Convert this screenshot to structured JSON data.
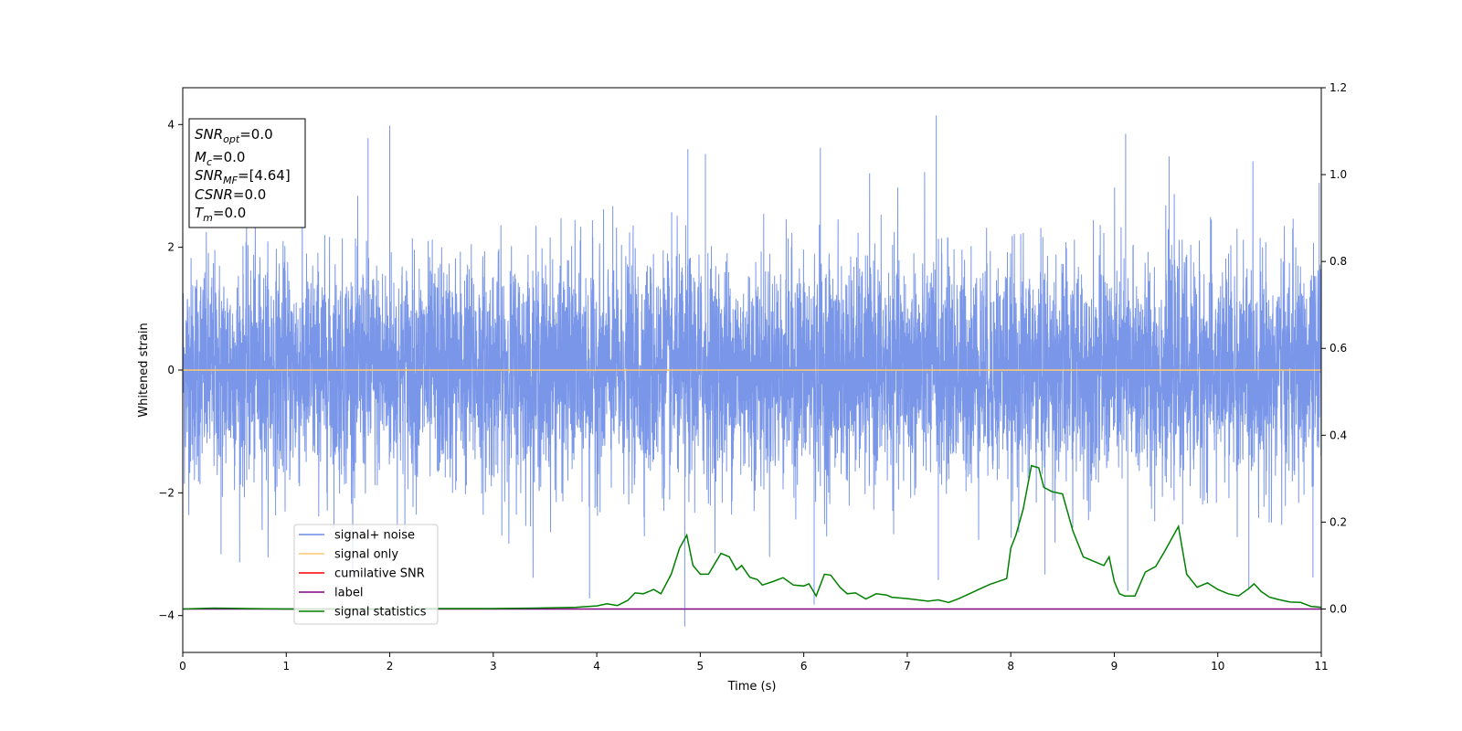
{
  "chart_data": {
    "type": "line",
    "xlabel": "Time (s)",
    "ylabel": "Whitened strain",
    "xlim": [
      0,
      11
    ],
    "ylim": [
      -4.6,
      4.6
    ],
    "y2lim": [
      -0.1,
      1.2
    ],
    "x_ticks": [
      0,
      1,
      2,
      3,
      4,
      5,
      6,
      7,
      8,
      9,
      10,
      11
    ],
    "y_ticks": [
      -4,
      -2,
      0,
      2,
      4
    ],
    "y2_ticks": [
      "0.0",
      "0.2",
      "0.4",
      "0.6",
      "0.8",
      "1.0",
      "1.2"
    ],
    "grid": false,
    "legend_position": "lower-left",
    "legend": [
      {
        "name": "signal+ noise",
        "color": "#6a8be6"
      },
      {
        "name": "signal only",
        "color": "#ffc870"
      },
      {
        "name": "cumilative SNR",
        "color": "#ff0000"
      },
      {
        "name": "label",
        "color": "#800080"
      },
      {
        "name": "signal statistics",
        "color": "#008000"
      }
    ],
    "info_box": [
      {
        "sym": "SNR",
        "sub": "opt",
        "rest": "=0.0"
      },
      {
        "sym": "M",
        "sub": "c",
        "rest": "=0.0"
      },
      {
        "sym": "SNR",
        "sub": "MF",
        "rest": "=[4.64]"
      },
      {
        "sym": "CSNR",
        "sub": "",
        "rest": "=0.0"
      },
      {
        "sym": "T",
        "sub": "m",
        "rest": "=0.0"
      }
    ],
    "series": [
      {
        "name": "signal+ noise",
        "axis": "left",
        "color": "#6a8be6",
        "description_envelope": "gaussian noise band, typically within ±2.2 with spikes",
        "spikes": [
          {
            "x": 1.79,
            "y": 3.78
          },
          {
            "x": 2.0,
            "y": 3.98
          },
          {
            "x": 4.88,
            "y": 3.6
          },
          {
            "x": 5.05,
            "y": 3.52
          },
          {
            "x": 6.16,
            "y": 3.62
          },
          {
            "x": 7.28,
            "y": 4.15
          },
          {
            "x": 9.11,
            "y": 3.85
          },
          {
            "x": 9.53,
            "y": 3.48
          },
          {
            "x": 10.98,
            "y": 3.05
          },
          {
            "x": 0.37,
            "y": -3.0
          },
          {
            "x": 3.93,
            "y": -3.72
          },
          {
            "x": 4.85,
            "y": -4.18
          },
          {
            "x": 6.1,
            "y": -3.82
          },
          {
            "x": 7.3,
            "y": -3.42
          },
          {
            "x": 8.33,
            "y": -3.33
          },
          {
            "x": 9.13,
            "y": -3.6
          },
          {
            "x": 10.3,
            "y": -3.58
          },
          {
            "x": 10.92,
            "y": -3.38
          }
        ]
      },
      {
        "name": "signal only",
        "axis": "left",
        "color": "#ffc870",
        "x": [
          0,
          11
        ],
        "y": [
          0,
          0
        ]
      },
      {
        "name": "label",
        "axis": "right",
        "color": "#800080",
        "x": [
          0,
          11
        ],
        "y": [
          0,
          0
        ]
      },
      {
        "name": "signal statistics",
        "axis": "right",
        "color": "#008000",
        "x": [
          0,
          0.3,
          0.6,
          1.0,
          1.5,
          2.0,
          2.5,
          3.0,
          3.4,
          3.8,
          4.0,
          4.1,
          4.2,
          4.3,
          4.37,
          4.45,
          4.55,
          4.62,
          4.72,
          4.8,
          4.87,
          4.93,
          5.0,
          5.08,
          5.2,
          5.28,
          5.35,
          5.4,
          5.48,
          5.55,
          5.6,
          5.7,
          5.8,
          5.9,
          6.0,
          6.05,
          6.12,
          6.2,
          6.26,
          6.35,
          6.42,
          6.5,
          6.6,
          6.7,
          6.8,
          6.85,
          7.0,
          7.2,
          7.3,
          7.4,
          7.5,
          7.6,
          7.7,
          7.8,
          7.9,
          7.96,
          8.0,
          8.05,
          8.12,
          8.2,
          8.27,
          8.32,
          8.4,
          8.5,
          8.6,
          8.7,
          8.8,
          8.9,
          8.95,
          9.0,
          9.05,
          9.1,
          9.15,
          9.2,
          9.3,
          9.4,
          9.48,
          9.55,
          9.62,
          9.7,
          9.8,
          9.9,
          10.0,
          10.05,
          10.1,
          10.2,
          10.3,
          10.35,
          10.42,
          10.5,
          10.6,
          10.7,
          10.8,
          10.9,
          11.0
        ],
        "y": [
          0.0,
          0.002,
          0.001,
          0.0,
          0.0,
          0.0,
          0.001,
          0.001,
          0.002,
          0.004,
          0.007,
          0.012,
          0.008,
          0.02,
          0.037,
          0.035,
          0.045,
          0.035,
          0.08,
          0.14,
          0.17,
          0.1,
          0.08,
          0.08,
          0.128,
          0.12,
          0.09,
          0.1,
          0.073,
          0.068,
          0.055,
          0.063,
          0.072,
          0.055,
          0.053,
          0.058,
          0.03,
          0.08,
          0.078,
          0.05,
          0.035,
          0.037,
          0.023,
          0.035,
          0.032,
          0.027,
          0.024,
          0.018,
          0.021,
          0.015,
          0.024,
          0.035,
          0.046,
          0.057,
          0.065,
          0.07,
          0.14,
          0.17,
          0.23,
          0.33,
          0.325,
          0.28,
          0.27,
          0.265,
          0.18,
          0.12,
          0.11,
          0.1,
          0.12,
          0.063,
          0.035,
          0.03,
          0.03,
          0.03,
          0.085,
          0.098,
          0.13,
          0.16,
          0.19,
          0.08,
          0.05,
          0.06,
          0.045,
          0.04,
          0.035,
          0.03,
          0.047,
          0.058,
          0.04,
          0.027,
          0.021,
          0.016,
          0.015,
          0.006,
          0.004
        ]
      }
    ]
  }
}
